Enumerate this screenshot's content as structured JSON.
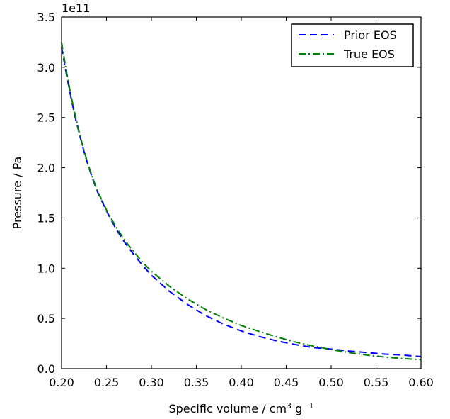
{
  "chart_data": {
    "type": "line",
    "xlabel": "Specific volume / cm",
    "xlabel_sup1": "3",
    "xlabel_mid": " g",
    "xlabel_sup2": "−1",
    "ylabel": "Pressure / Pa",
    "y_offset_label": "1e11",
    "xlim": [
      0.2,
      0.6
    ],
    "ylim": [
      0.0,
      3.5
    ],
    "x_ticks": [
      0.2,
      0.25,
      0.3,
      0.35,
      0.4,
      0.45,
      0.5,
      0.55,
      0.6
    ],
    "x_tick_labels": [
      "0.20",
      "0.25",
      "0.30",
      "0.35",
      "0.40",
      "0.45",
      "0.50",
      "0.55",
      "0.60"
    ],
    "y_ticks": [
      0.0,
      0.5,
      1.0,
      1.5,
      2.0,
      2.5,
      3.0,
      3.5
    ],
    "y_tick_labels": [
      "0.0",
      "0.5",
      "1.0",
      "1.5",
      "2.0",
      "2.5",
      "3.0",
      "3.5"
    ],
    "grid": false,
    "legend_position": "top-right",
    "series": [
      {
        "name": "Prior EOS",
        "color": "#0000ff",
        "style": "dashed",
        "x": [
          0.2,
          0.205,
          0.21,
          0.215,
          0.22,
          0.225,
          0.23,
          0.235,
          0.24,
          0.25,
          0.26,
          0.27,
          0.28,
          0.29,
          0.3,
          0.32,
          0.34,
          0.36,
          0.38,
          0.4,
          0.42,
          0.44,
          0.46,
          0.48,
          0.5,
          0.52,
          0.54,
          0.56,
          0.58,
          0.6
        ],
        "y": [
          3.2,
          2.95,
          2.72,
          2.51,
          2.33,
          2.16,
          2.01,
          1.88,
          1.76,
          1.57,
          1.4,
          1.26,
          1.14,
          1.03,
          0.93,
          0.77,
          0.64,
          0.53,
          0.445,
          0.375,
          0.32,
          0.275,
          0.24,
          0.21,
          0.195,
          0.175,
          0.16,
          0.145,
          0.135,
          0.12
        ]
      },
      {
        "name": "True EOS",
        "color": "#008000",
        "style": "dashdot",
        "x": [
          0.2,
          0.205,
          0.21,
          0.215,
          0.22,
          0.225,
          0.23,
          0.235,
          0.24,
          0.25,
          0.26,
          0.27,
          0.28,
          0.29,
          0.3,
          0.32,
          0.34,
          0.36,
          0.38,
          0.4,
          0.42,
          0.44,
          0.46,
          0.48,
          0.5,
          0.52,
          0.54,
          0.56,
          0.58,
          0.6
        ],
        "y": [
          3.25,
          2.98,
          2.74,
          2.53,
          2.34,
          2.17,
          2.02,
          1.89,
          1.77,
          1.58,
          1.42,
          1.28,
          1.17,
          1.06,
          0.97,
          0.82,
          0.695,
          0.59,
          0.505,
          0.43,
          0.37,
          0.315,
          0.265,
          0.225,
          0.19,
          0.16,
          0.135,
          0.115,
          0.1,
          0.09
        ]
      }
    ]
  }
}
